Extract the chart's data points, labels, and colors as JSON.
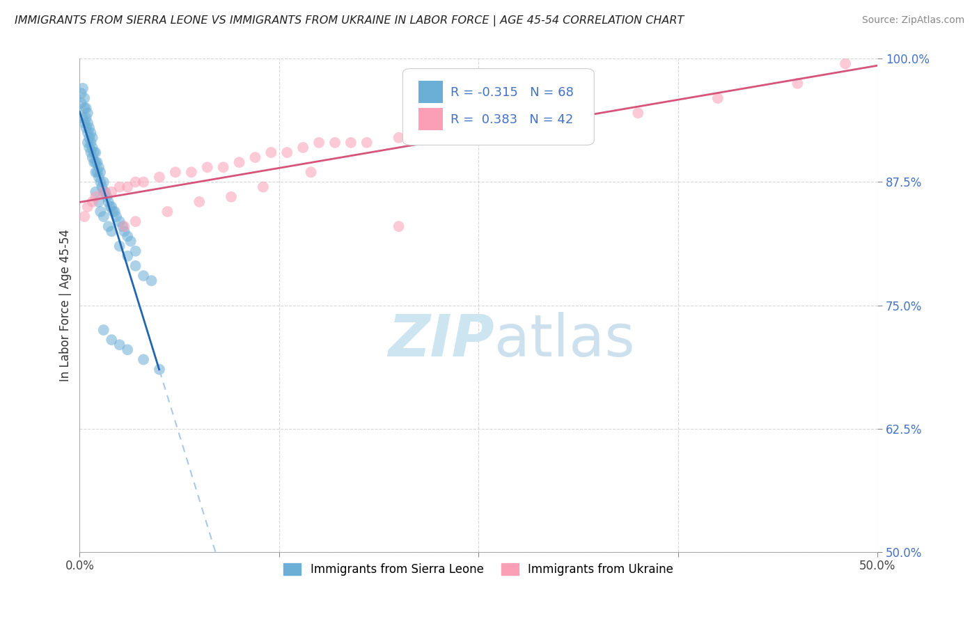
{
  "title": "IMMIGRANTS FROM SIERRA LEONE VS IMMIGRANTS FROM UKRAINE IN LABOR FORCE | AGE 45-54 CORRELATION CHART",
  "source": "Source: ZipAtlas.com",
  "ylabel": "In Labor Force | Age 45-54",
  "xlim": [
    0.0,
    50.0
  ],
  "ylim": [
    50.0,
    100.0
  ],
  "xticks": [
    0.0,
    12.5,
    25.0,
    37.5,
    50.0
  ],
  "xticklabels": [
    "0.0%",
    "",
    "",
    "",
    "50.0%"
  ],
  "yticks": [
    50.0,
    62.5,
    75.0,
    87.5,
    100.0
  ],
  "yticklabels": [
    "50.0%",
    "62.5%",
    "75.0%",
    "87.5%",
    "100.0%"
  ],
  "sierra_leone_R": -0.315,
  "sierra_leone_N": 68,
  "ukraine_R": 0.383,
  "ukraine_N": 42,
  "sierra_leone_color": "#6baed6",
  "ukraine_color": "#fa9fb5",
  "sierra_leone_line_color": "#2166ac",
  "ukraine_line_color": "#d6537a",
  "background_color": "#ffffff",
  "watermark_color": "#cce5f0",
  "legend_label_sierra": "Immigrants from Sierra Leone",
  "legend_label_ukraine": "Immigrants from Ukraine",
  "sierra_leone_x": [
    0.1,
    0.1,
    0.2,
    0.2,
    0.3,
    0.3,
    0.3,
    0.4,
    0.4,
    0.4,
    0.5,
    0.5,
    0.5,
    0.5,
    0.6,
    0.6,
    0.6,
    0.7,
    0.7,
    0.7,
    0.8,
    0.8,
    0.8,
    0.9,
    0.9,
    1.0,
    1.0,
    1.0,
    1.1,
    1.1,
    1.2,
    1.2,
    1.3,
    1.3,
    1.4,
    1.5,
    1.5,
    1.6,
    1.7,
    1.8,
    1.9,
    2.0,
    2.1,
    2.2,
    2.3,
    2.5,
    2.7,
    2.8,
    3.0,
    3.2,
    3.5,
    4.0,
    1.0,
    1.2,
    1.3,
    1.5,
    1.8,
    2.0,
    2.5,
    3.0,
    3.5,
    4.5,
    1.5,
    2.0,
    2.5,
    3.0,
    4.0,
    5.0
  ],
  "sierra_leone_y": [
    95.5,
    96.5,
    94.0,
    97.0,
    93.5,
    95.0,
    96.0,
    93.0,
    94.0,
    95.0,
    91.5,
    92.5,
    93.5,
    94.5,
    91.0,
    92.0,
    93.0,
    90.5,
    91.5,
    92.5,
    90.0,
    91.0,
    92.0,
    89.5,
    90.5,
    88.5,
    89.5,
    90.5,
    88.5,
    89.5,
    88.0,
    89.0,
    87.5,
    88.5,
    87.0,
    86.5,
    87.5,
    86.5,
    86.0,
    85.5,
    85.0,
    85.0,
    84.5,
    84.5,
    84.0,
    83.5,
    83.0,
    82.5,
    82.0,
    81.5,
    80.5,
    78.0,
    86.5,
    85.5,
    84.5,
    84.0,
    83.0,
    82.5,
    81.0,
    80.0,
    79.0,
    77.5,
    72.5,
    71.5,
    71.0,
    70.5,
    69.5,
    68.5
  ],
  "ukraine_x": [
    0.3,
    0.5,
    0.8,
    1.0,
    1.5,
    2.0,
    2.5,
    3.0,
    3.5,
    4.0,
    5.0,
    6.0,
    7.0,
    8.0,
    9.0,
    10.0,
    11.0,
    12.0,
    13.0,
    14.0,
    15.0,
    16.0,
    17.0,
    18.0,
    20.0,
    22.0,
    24.0,
    26.0,
    28.0,
    30.0,
    35.0,
    40.0,
    45.0,
    48.0,
    2.8,
    3.5,
    5.5,
    7.5,
    9.5,
    11.5,
    14.5,
    20.0
  ],
  "ukraine_y": [
    84.0,
    85.0,
    85.5,
    86.0,
    86.5,
    86.5,
    87.0,
    87.0,
    87.5,
    87.5,
    88.0,
    88.5,
    88.5,
    89.0,
    89.0,
    89.5,
    90.0,
    90.5,
    90.5,
    91.0,
    91.5,
    91.5,
    91.5,
    91.5,
    92.0,
    92.0,
    93.0,
    92.5,
    93.5,
    93.5,
    94.5,
    96.0,
    97.5,
    99.5,
    83.0,
    83.5,
    84.5,
    85.5,
    86.0,
    87.0,
    88.5,
    83.0
  ]
}
